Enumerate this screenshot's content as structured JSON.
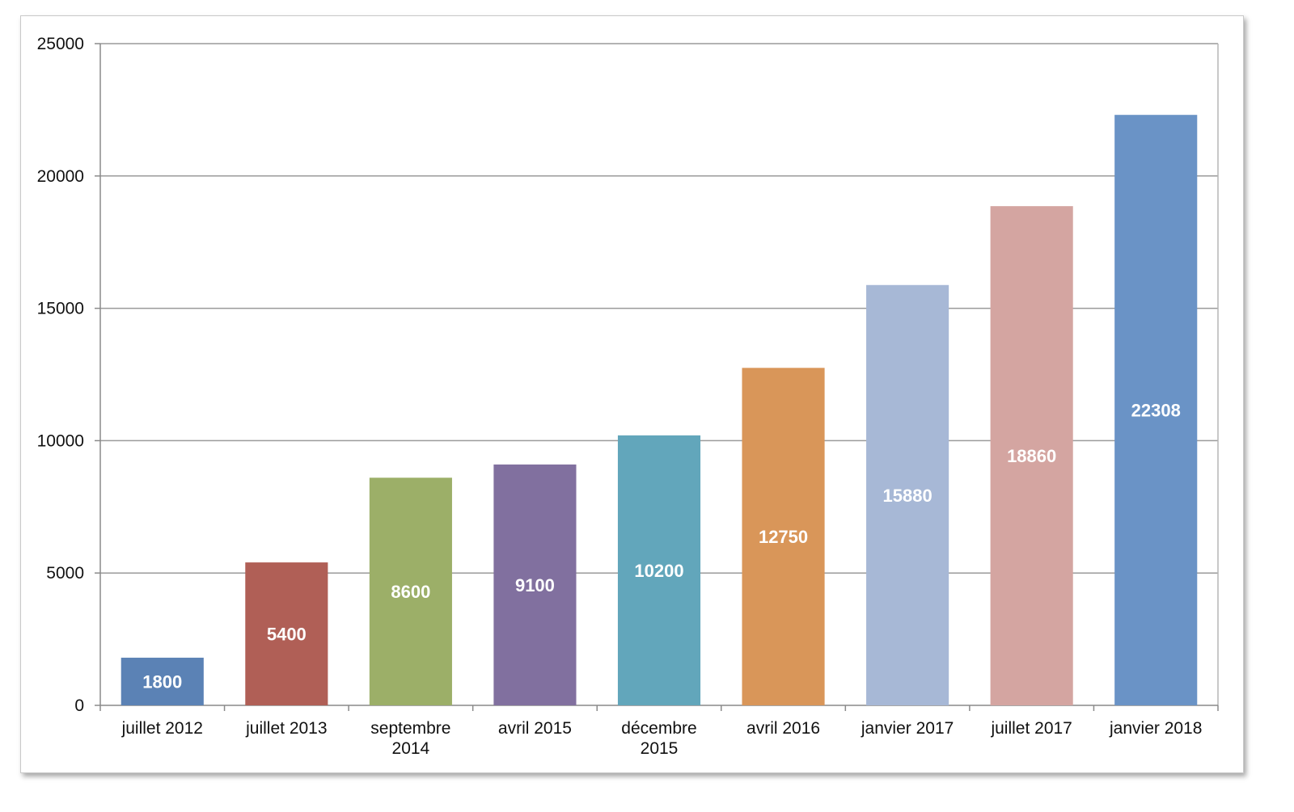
{
  "chart_data": {
    "type": "bar",
    "categories": [
      [
        "juillet 2012"
      ],
      [
        "juillet 2013"
      ],
      [
        "septembre",
        "2014"
      ],
      [
        "avril 2015"
      ],
      [
        "décembre",
        "2015"
      ],
      [
        "avril 2016"
      ],
      [
        "janvier 2017"
      ],
      [
        "juillet 2017"
      ],
      [
        "janvier 2018"
      ]
    ],
    "values": [
      1800,
      5400,
      8600,
      9100,
      10200,
      12750,
      15880,
      18860,
      22308
    ],
    "data_labels": [
      "1800",
      "5400",
      "8600",
      "9100",
      "10200",
      "12750",
      "15880",
      "18860",
      "22308"
    ],
    "colors": [
      "#5b82b5",
      "#b05f56",
      "#9caf68",
      "#81709f",
      "#62a6bb",
      "#d99659",
      "#a7b8d6",
      "#d4a5a1",
      "#6a93c6"
    ],
    "yticks": [
      0,
      5000,
      10000,
      15000,
      20000,
      25000
    ],
    "ylim": [
      0,
      25000
    ],
    "grid": true,
    "legend": "none",
    "title": "",
    "xlabel": "",
    "ylabel": ""
  }
}
